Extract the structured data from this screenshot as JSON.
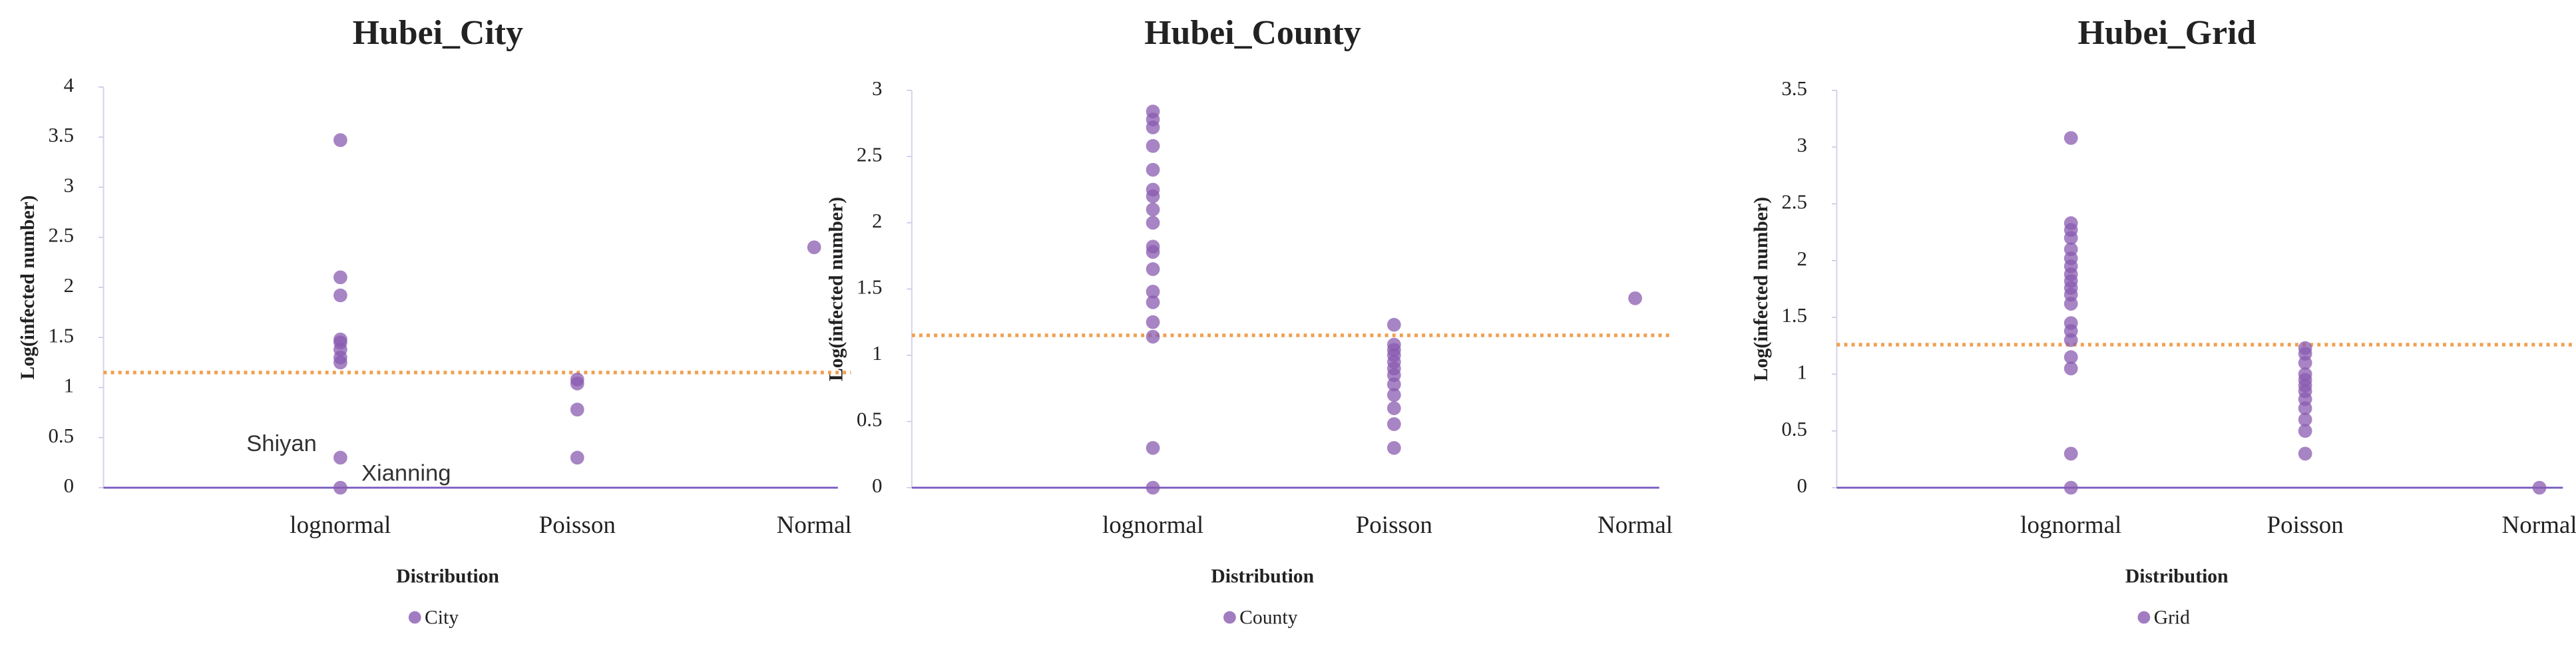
{
  "chart_data": [
    {
      "type": "scatter",
      "title": "Hubei_City",
      "xlabel": "Distribution",
      "ylabel": "Log(infected number)",
      "categories": [
        "lognormal",
        "Poisson",
        "Normal"
      ],
      "ylim": [
        0,
        4
      ],
      "yticks": [
        0,
        0.5,
        1,
        1.5,
        2,
        2.5,
        3,
        3.5,
        4
      ],
      "series": [
        {
          "name": "City",
          "color": "#8a5bb0",
          "x": [
            "lognormal",
            "lognormal",
            "lognormal",
            "lognormal",
            "lognormal",
            "lognormal",
            "lognormal",
            "lognormal",
            "lognormal",
            "lognormal",
            "Poisson",
            "Poisson",
            "Poisson",
            "Poisson",
            "Normal"
          ],
          "values": [
            3.47,
            2.1,
            1.92,
            1.48,
            1.45,
            1.38,
            1.3,
            1.25,
            0.3,
            0,
            1.08,
            1.04,
            0.78,
            0.3,
            2.4
          ]
        }
      ],
      "reference_line": {
        "value": 1.15,
        "color": "#f0a050"
      },
      "annotations": [
        "Shiyan",
        "Xianning"
      ]
    },
    {
      "type": "scatter",
      "title": "Hubei_County",
      "xlabel": "Distribution",
      "ylabel": "Log(infected number)",
      "categories": [
        "lognormal",
        "Poisson",
        "Normal"
      ],
      "ylim": [
        0,
        3
      ],
      "yticks": [
        0,
        0.5,
        1,
        1.5,
        2,
        2.5,
        3
      ],
      "series": [
        {
          "name": "County",
          "color": "#8a5bb0",
          "x": [
            "lognormal",
            "lognormal",
            "lognormal",
            "lognormal",
            "lognormal",
            "lognormal",
            "lognormal",
            "lognormal",
            "lognormal",
            "lognormal",
            "lognormal",
            "lognormal",
            "lognormal",
            "lognormal",
            "lognormal",
            "lognormal",
            "lognormal",
            "lognormal",
            "Poisson",
            "Poisson",
            "Poisson",
            "Poisson",
            "Poisson",
            "Poisson",
            "Poisson",
            "Poisson",
            "Poisson",
            "Poisson",
            "Poisson",
            "Poisson",
            "Normal"
          ],
          "values": [
            2.84,
            2.78,
            2.72,
            2.58,
            2.4,
            2.25,
            2.2,
            2.1,
            2.0,
            1.82,
            1.78,
            1.65,
            1.48,
            1.4,
            1.25,
            1.14,
            0.3,
            0,
            1.23,
            1.08,
            1.04,
            1.0,
            0.95,
            0.9,
            0.85,
            0.78,
            0.7,
            0.6,
            0.48,
            0.3,
            1.43
          ]
        }
      ],
      "reference_line": {
        "value": 1.15,
        "color": "#f0a050"
      }
    },
    {
      "type": "scatter",
      "title": "Hubei_Grid",
      "xlabel": "Distribution",
      "ylabel": "Log(infected number)",
      "categories": [
        "lognormal",
        "Poisson",
        "Normal"
      ],
      "ylim": [
        0,
        3.5
      ],
      "yticks": [
        0,
        0.5,
        1,
        1.5,
        2,
        2.5,
        3,
        3.5
      ],
      "series": [
        {
          "name": "Grid",
          "color": "#8a5bb0",
          "x": [
            "lognormal",
            "lognormal",
            "lognormal",
            "lognormal",
            "lognormal",
            "lognormal",
            "lognormal",
            "lognormal",
            "lognormal",
            "lognormal",
            "lognormal",
            "lognormal",
            "lognormal",
            "lognormal",
            "lognormal",
            "lognormal",
            "lognormal",
            "lognormal",
            "lognormal",
            "Poisson",
            "Poisson",
            "Poisson",
            "Poisson",
            "Poisson",
            "Poisson",
            "Poisson",
            "Poisson",
            "Poisson",
            "Poisson",
            "Poisson",
            "Poisson",
            "Normal"
          ],
          "values": [
            3.08,
            2.33,
            2.27,
            2.2,
            2.1,
            2.02,
            1.95,
            1.88,
            1.82,
            1.76,
            1.7,
            1.62,
            1.45,
            1.38,
            1.3,
            1.15,
            1.05,
            0.3,
            0,
            1.23,
            1.18,
            1.1,
            1.0,
            0.95,
            0.9,
            0.85,
            0.78,
            0.7,
            0.6,
            0.5,
            0.3,
            0
          ]
        }
      ],
      "reference_line": {
        "value": 1.26,
        "color": "#f0a050"
      }
    }
  ]
}
